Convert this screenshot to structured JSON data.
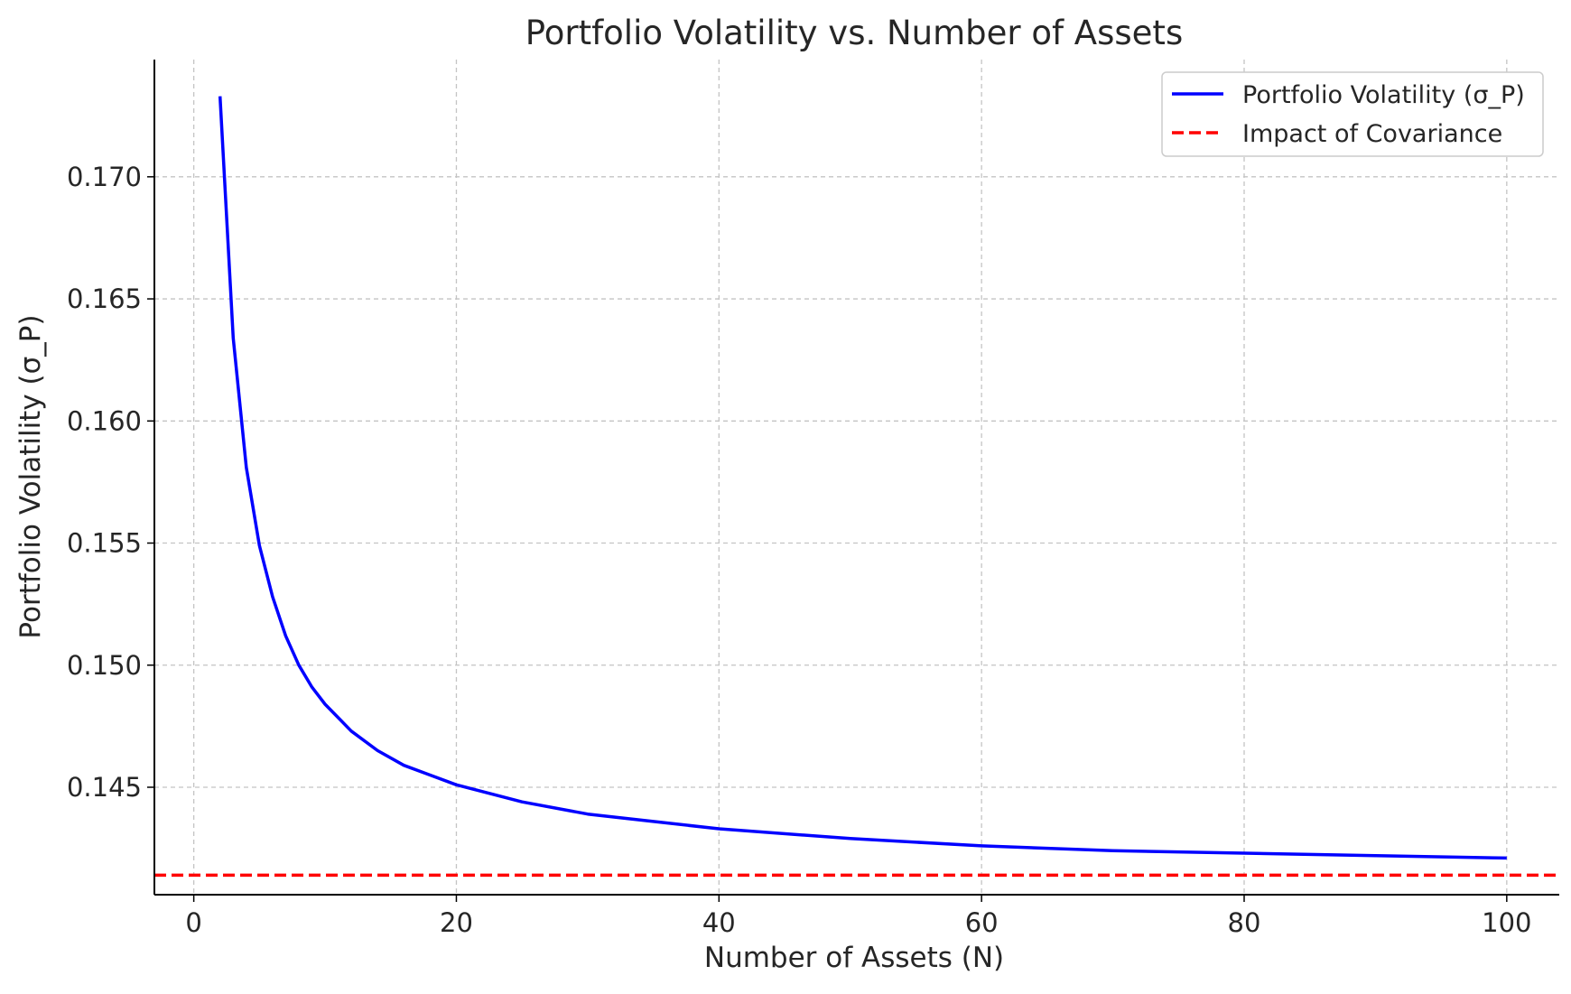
{
  "chart_data": {
    "type": "line",
    "title": "Portfolio Volatility vs. Number of Assets",
    "xlabel": "Number of Assets (N)",
    "ylabel": "Portfolio Volatility (σ_P)",
    "xlim": [
      -3,
      104
    ],
    "ylim": [
      0.1406,
      0.1748
    ],
    "x_ticks": [
      0,
      20,
      40,
      60,
      80,
      100
    ],
    "y_ticks": [
      0.145,
      0.15,
      0.155,
      0.16,
      0.165,
      0.17
    ],
    "x_tick_labels": [
      "0",
      "20",
      "40",
      "60",
      "80",
      "100"
    ],
    "y_tick_labels": [
      "0.145",
      "0.150",
      "0.155",
      "0.160",
      "0.165",
      "0.170"
    ],
    "grid": true,
    "legend_position": "top-right",
    "series": [
      {
        "name": "Portfolio Volatility (σ_P)",
        "color": "#0000ff",
        "style": "solid",
        "x": [
          2,
          3,
          4,
          5,
          6,
          7,
          8,
          9,
          10,
          12,
          14,
          16,
          18,
          20,
          25,
          30,
          35,
          40,
          50,
          60,
          70,
          80,
          90,
          100
        ],
        "y": [
          0.1733,
          0.1634,
          0.1581,
          0.1549,
          0.1528,
          0.1512,
          0.15,
          0.1491,
          0.1484,
          0.1473,
          0.1465,
          0.1459,
          0.1455,
          0.1451,
          0.1444,
          0.1439,
          0.1436,
          0.1433,
          0.1429,
          0.1426,
          0.1424,
          0.1423,
          0.1422,
          0.1421
        ]
      },
      {
        "name": "Impact of Covariance",
        "color": "#ff0000",
        "style": "dashed",
        "y_constant": 0.1414
      }
    ]
  }
}
